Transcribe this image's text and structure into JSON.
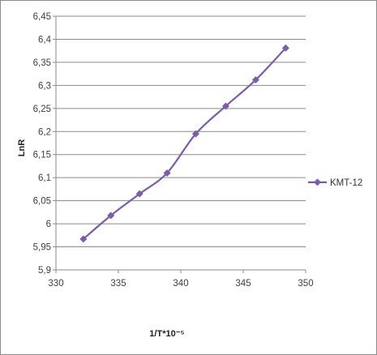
{
  "chart_data": {
    "type": "line",
    "x": [
      332.2,
      334.4,
      336.7,
      338.9,
      341.2,
      343.6,
      346.0,
      348.4
    ],
    "series": [
      {
        "name": "KMT-12",
        "values": [
          5.967,
          6.018,
          6.065,
          6.11,
          6.195,
          6.255,
          6.312,
          6.381
        ],
        "color": "#7b5ea7",
        "marker": "diamond"
      }
    ],
    "xlabel": "1/T*10⁻⁵",
    "ylabel": "LnR",
    "xlim": [
      330,
      350
    ],
    "ylim": [
      5.9,
      6.45
    ],
    "xticks": [
      "330",
      "335",
      "340",
      "345",
      "350"
    ],
    "yticks": [
      "5,9",
      "5,95",
      "6",
      "6,05",
      "6,1",
      "6,15",
      "6,2",
      "6,25",
      "6,3",
      "6,35",
      "6,4",
      "6,45"
    ],
    "grid": "horizontal",
    "legend": "right"
  }
}
